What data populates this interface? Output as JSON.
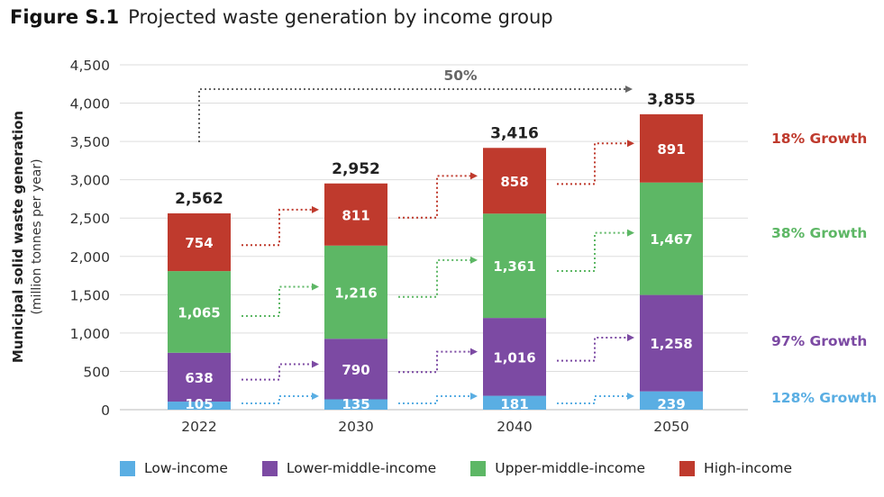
{
  "title": {
    "label": "Figure S.1",
    "text": "Projected waste generation by income group"
  },
  "colors": {
    "low": "#5aaee3",
    "lower_middle": "#7c4aa3",
    "upper_middle": "#5db765",
    "high": "#bf3a2d",
    "axis_text": "#333333",
    "gridline": "#dddddd",
    "arrow_gray": "#666666"
  },
  "chart_data": {
    "type": "bar",
    "stacked": true,
    "categories": [
      "2022",
      "2030",
      "2040",
      "2050"
    ],
    "series": [
      {
        "name": "Low-income",
        "key": "low",
        "values": [
          105,
          135,
          181,
          239
        ],
        "growth": "128% Growth"
      },
      {
        "name": "Lower-middle-income",
        "key": "lower_middle",
        "values": [
          638,
          790,
          1016,
          1258
        ],
        "growth": "97% Growth"
      },
      {
        "name": "Upper-middle-income",
        "key": "upper_middle",
        "values": [
          1065,
          1216,
          1361,
          1467
        ],
        "growth": "38% Growth"
      },
      {
        "name": "High-income",
        "key": "high",
        "values": [
          754,
          811,
          858,
          891
        ],
        "growth": "18% Growth"
      }
    ],
    "totals": [
      "2,562",
      "2,952",
      "3,416",
      "3,855"
    ],
    "value_labels": [
      [
        "105",
        "135",
        "181",
        "239"
      ],
      [
        "638",
        "790",
        "1,016",
        "1,258"
      ],
      [
        "1,065",
        "1,216",
        "1,361",
        "1,467"
      ],
      [
        "754",
        "811",
        "858",
        "891"
      ]
    ],
    "yticks": [
      0,
      500,
      1000,
      1500,
      2000,
      2500,
      3000,
      3500,
      4000,
      4500
    ],
    "ytick_labels": [
      "0",
      "500",
      "1,000",
      "1,500",
      "2,000",
      "2,500",
      "3,000",
      "3,500",
      "4,000",
      "4,500"
    ],
    "ylim": [
      0,
      4500
    ],
    "ylabel": "Municipal solid waste generation",
    "ylabel_sub": "(million tonnes per year)",
    "xlabel": "",
    "overall_growth": "50%",
    "grid": true,
    "legend": "bottom"
  }
}
